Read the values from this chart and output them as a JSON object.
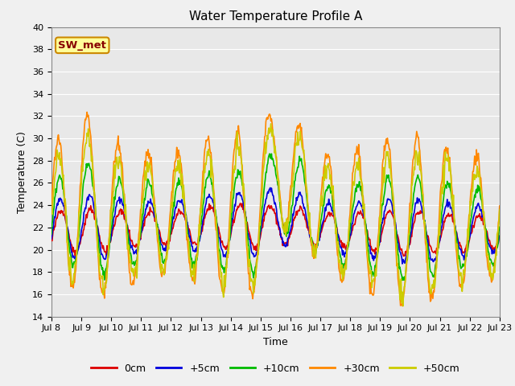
{
  "title": "Water Temperature Profile A",
  "xlabel": "Time",
  "ylabel": "Temperature (C)",
  "ylim": [
    14,
    40
  ],
  "yticks": [
    14,
    16,
    18,
    20,
    22,
    24,
    26,
    28,
    30,
    32,
    34,
    36,
    38,
    40
  ],
  "xtick_days": [
    8,
    9,
    10,
    11,
    12,
    13,
    14,
    15,
    16,
    17,
    18,
    19,
    20,
    21,
    22,
    23
  ],
  "series_labels": [
    "0cm",
    "+5cm",
    "+10cm",
    "+30cm",
    "+50cm"
  ],
  "series_colors": [
    "#dd0000",
    "#0000dd",
    "#00bb00",
    "#ff8800",
    "#cccc00"
  ],
  "series_linewidths": [
    1.2,
    1.2,
    1.2,
    1.2,
    1.2
  ],
  "annotation_text": "SW_met",
  "annotation_bg": "#ffff99",
  "annotation_border": "#cc8800",
  "annotation_text_color": "#880000",
  "fig_bg": "#f0f0f0",
  "plot_bg": "#e8e8e8",
  "title_fontsize": 11,
  "label_fontsize": 9,
  "tick_fontsize": 8,
  "legend_fontsize": 9,
  "grid_color": "#ffffff",
  "n_points": 720
}
